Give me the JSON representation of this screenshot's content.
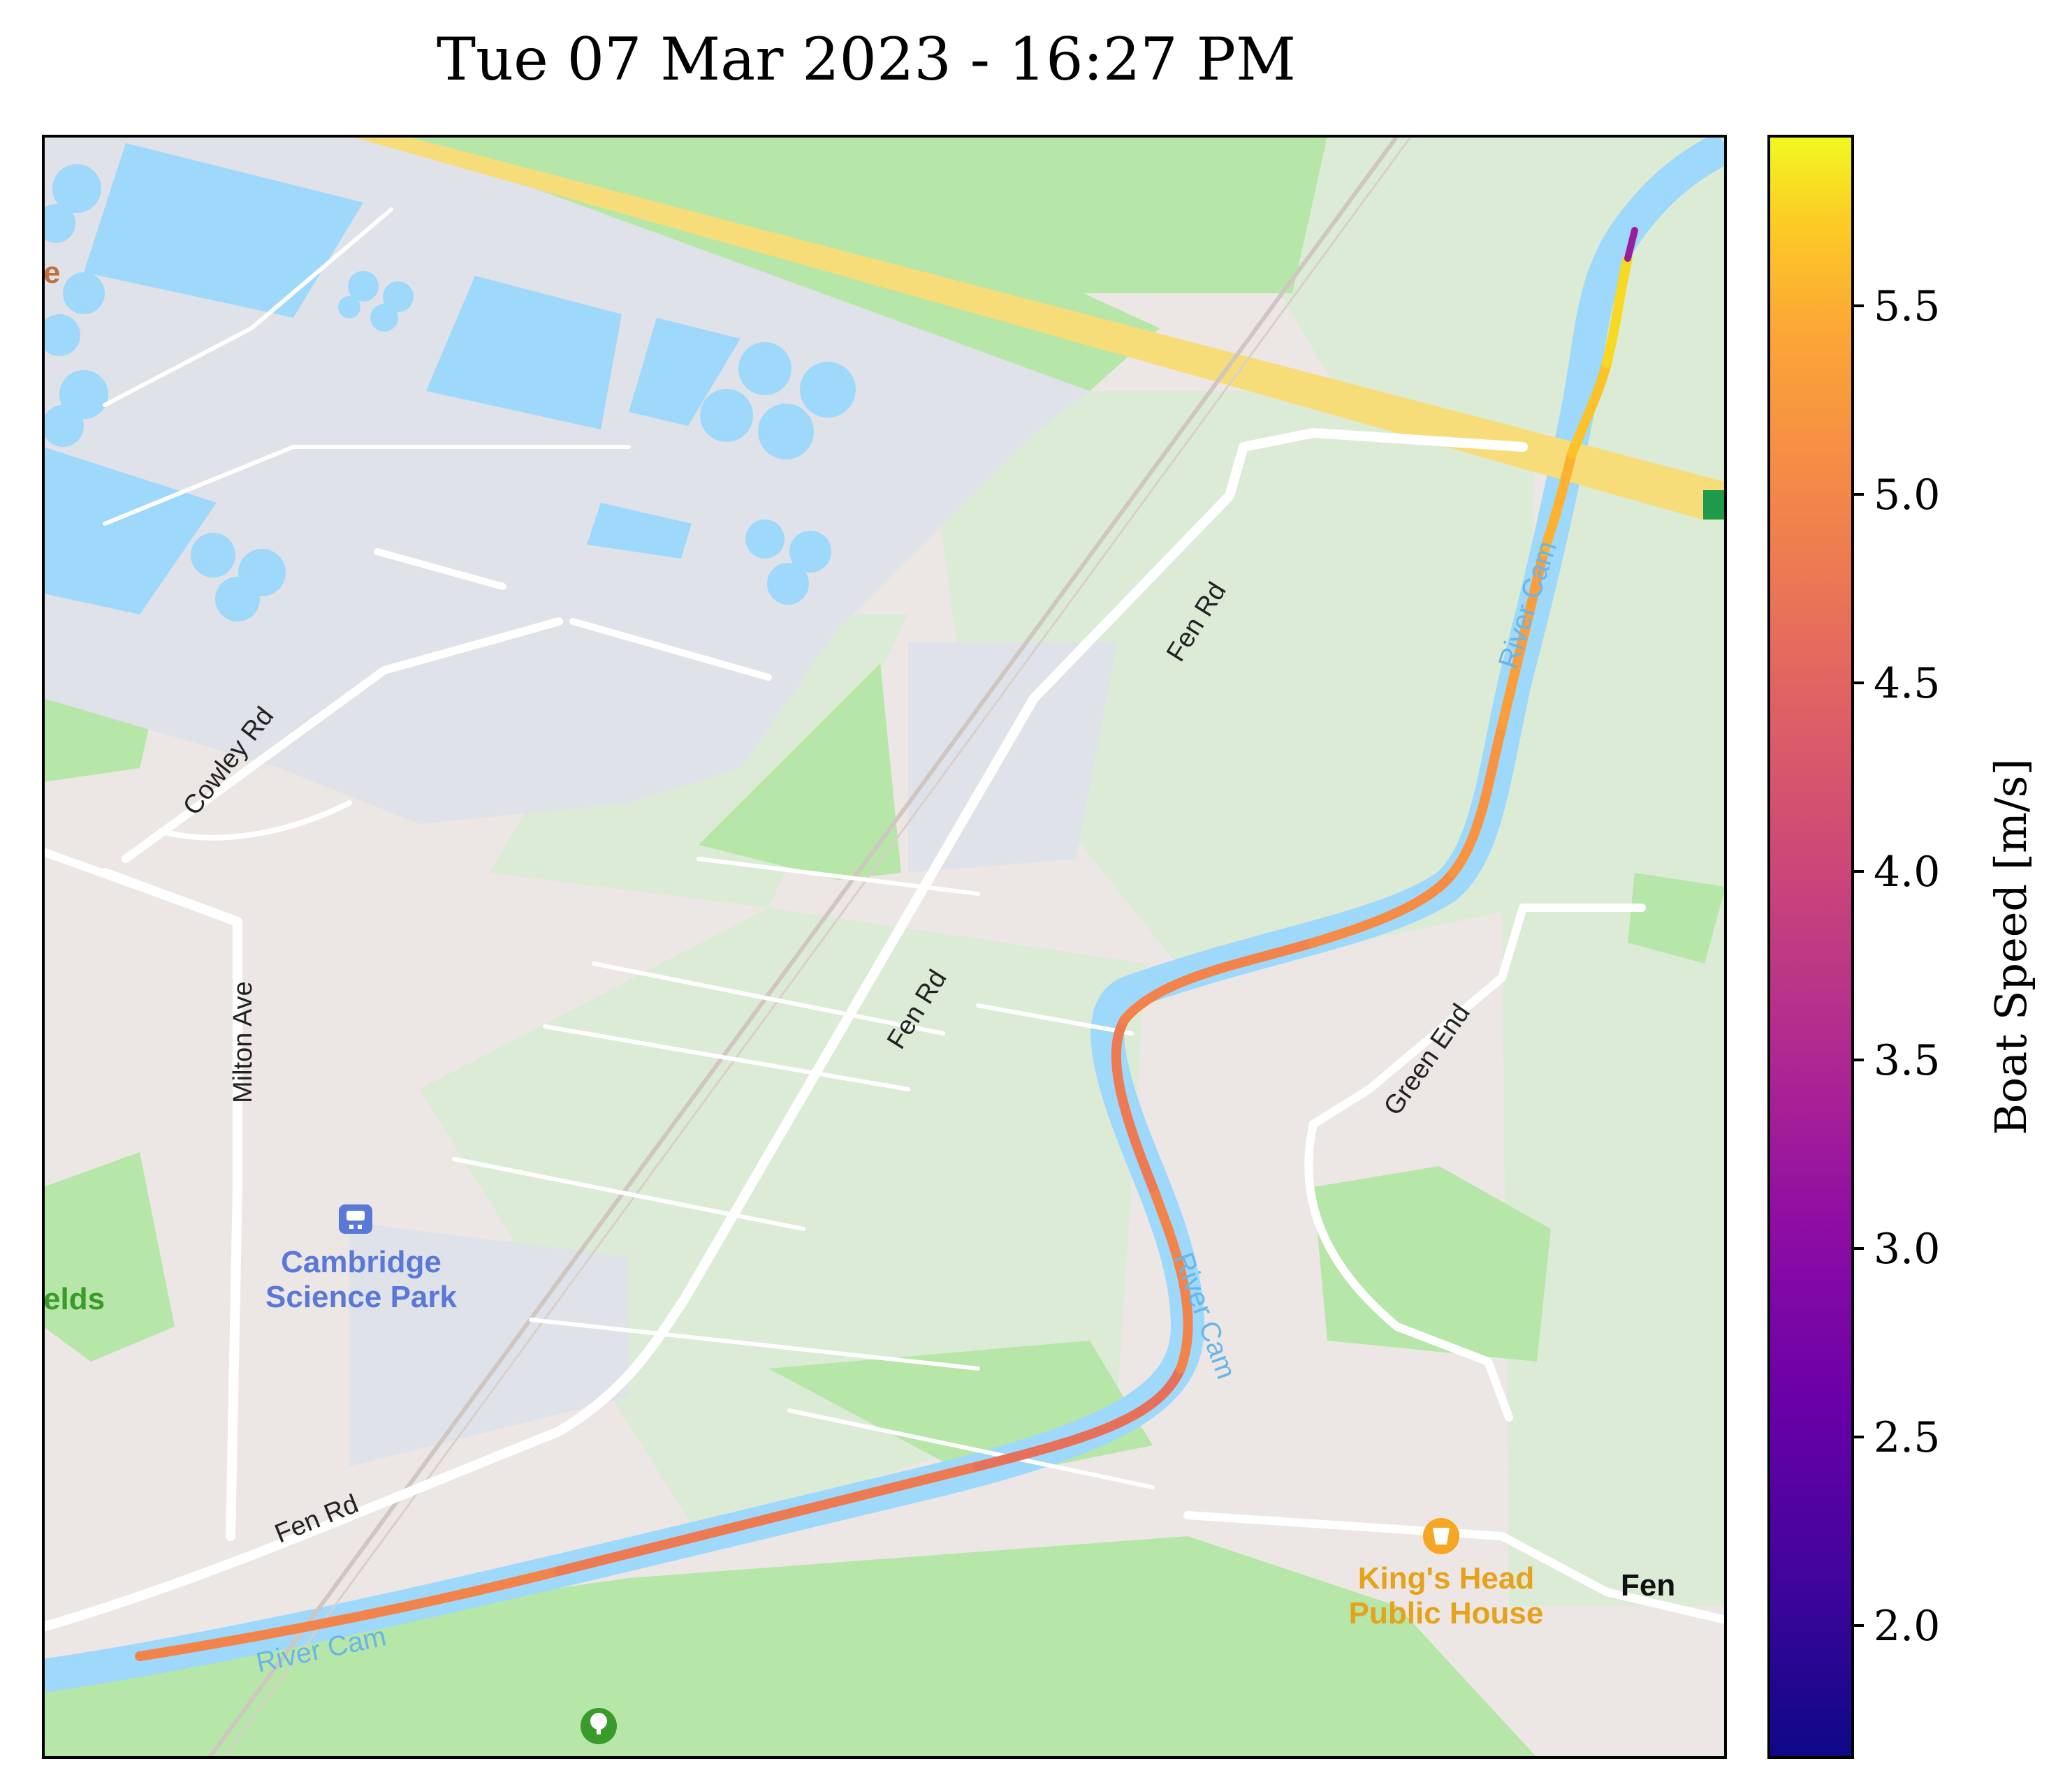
{
  "title": "Tue 07 Mar 2023 - 16:27 PM",
  "map": {
    "road_labels": {
      "fen_rd_upper": "Fen Rd",
      "fen_rd_middle": "Fen Rd",
      "fen_rd_lower": "Fen Rd",
      "cowley_rd": "Cowley Rd",
      "milton_ave": "Milton Ave",
      "green_end": "Green End"
    },
    "river_labels": {
      "upper": "River Cam",
      "middle": "River Cam",
      "lower": "River Cam"
    },
    "poi": {
      "station_line1": "Cambridge",
      "station_line2": "Science Park",
      "pub_line1": "King's Head",
      "pub_line2": "Public House",
      "fen_partial": "Fen",
      "fields_partial": "elds",
      "edge_partial": "e"
    },
    "icons": [
      "train-station-icon",
      "pub-icon",
      "park-icon"
    ],
    "colors": {
      "water": "#9ed8fb",
      "park": "#b6e6a8",
      "land": "#ece7e4",
      "industrial": "#dfe2e9",
      "highway": "#f7dd7a",
      "station_text": "#5a78d8",
      "pub_text": "#e6a21a",
      "park_text": "#3a9a2a"
    }
  },
  "colorbar": {
    "label": "Boat Speed [m/s]",
    "colormap": "plasma",
    "min": 1.65,
    "max": 5.95,
    "ticks": [
      "2.0",
      "2.5",
      "3.0",
      "3.5",
      "4.0",
      "4.5",
      "5.0",
      "5.5"
    ]
  },
  "track": {
    "description_colormap": "plasma",
    "speeds": [
      4.6,
      4.7,
      4.6,
      4.7,
      4.5,
      4.6,
      4.4,
      4.6,
      4.7,
      4.7,
      4.8,
      4.8,
      4.7,
      4.8,
      4.9,
      5.0,
      5.1,
      5.2,
      5.4,
      5.6,
      5.7,
      3.2
    ]
  }
}
